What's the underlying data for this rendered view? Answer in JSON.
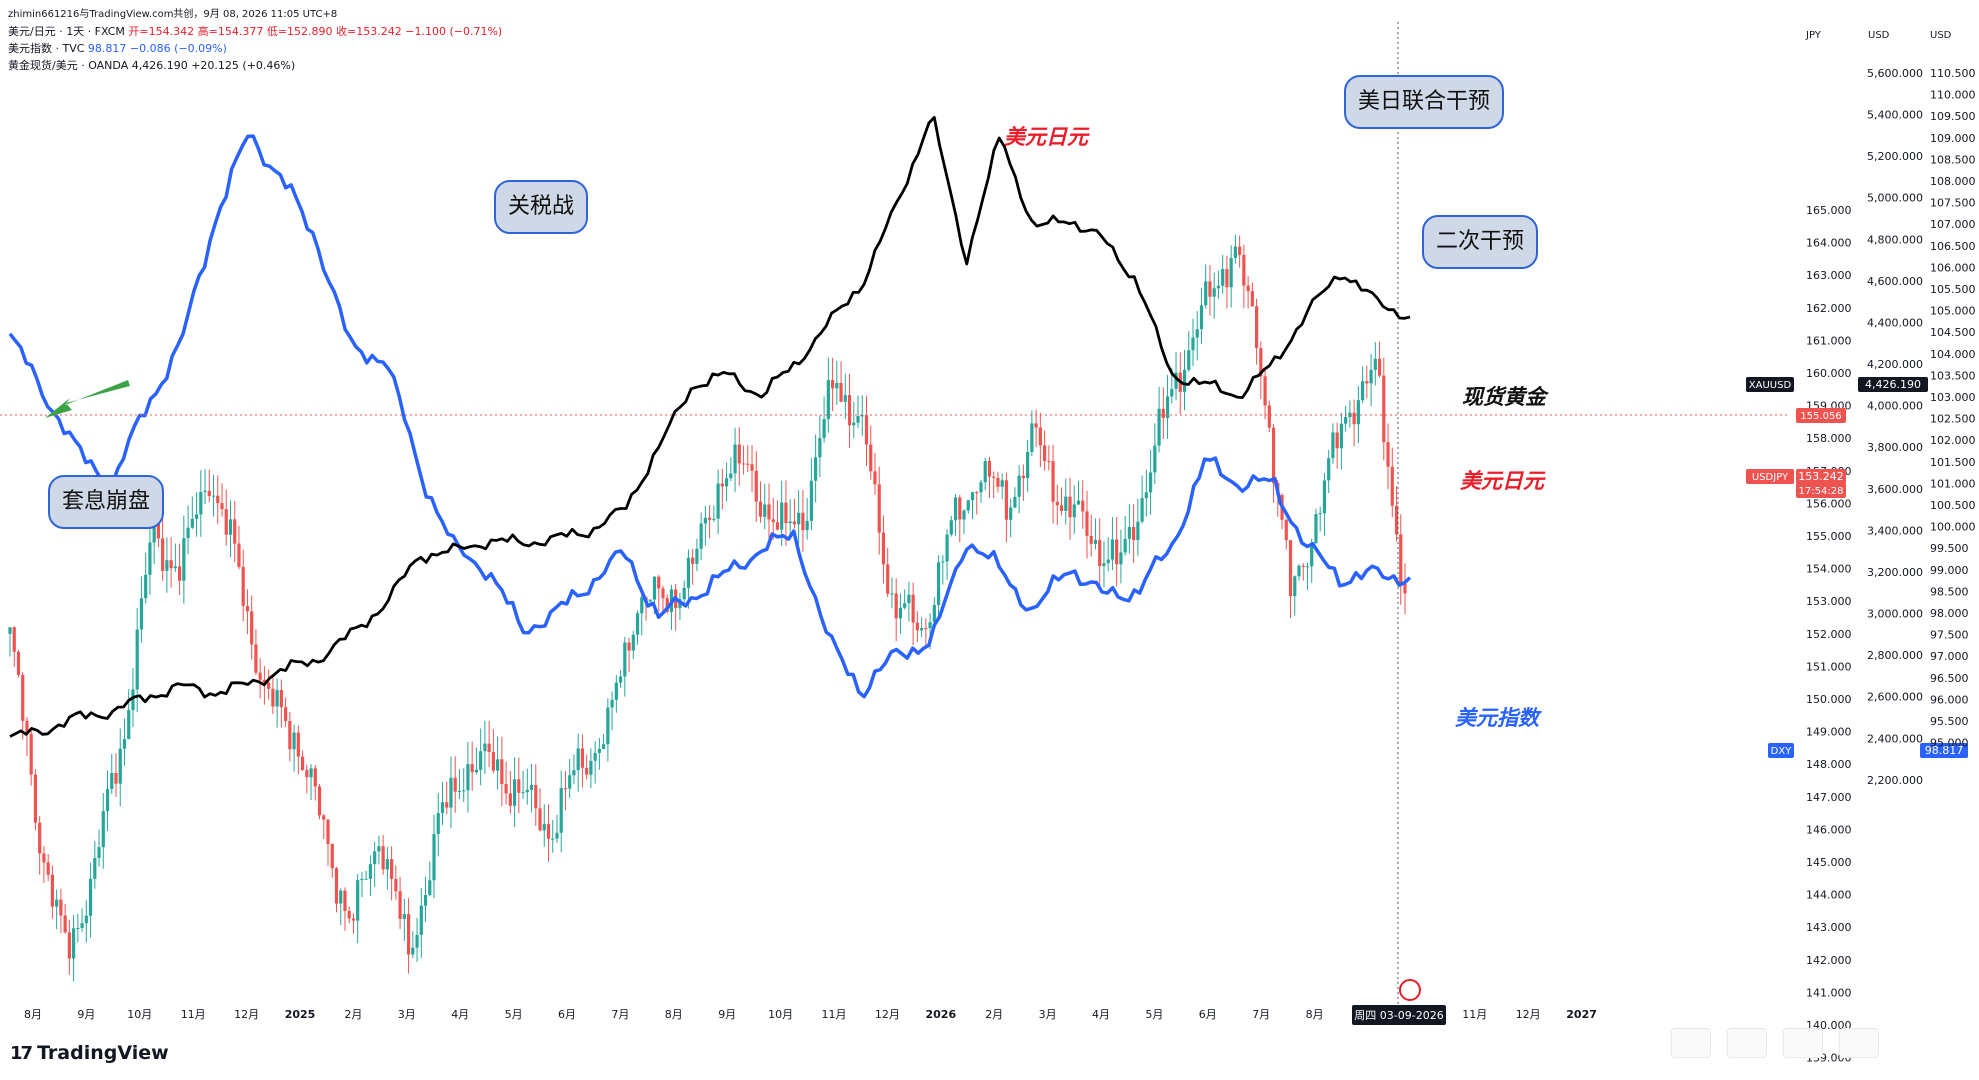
{
  "header": {
    "credit": "zhimin661216与TradingView.com共创，9月 08, 2026 11:05 UTC+8",
    "line1_prefix": "美元/日元 · 1天 · FXCM",
    "line1_ohlc": "开=154.342  高=154.377  低=152.890  收=153.242",
    "line1_change": "−1.100 (−0.71%)",
    "line2_prefix": "美元指数 · TVC",
    "line2_value": "98.817  −0.086 (−0.09%)",
    "line3_prefix": "黄金现货/美元 · OANDA",
    "line3_value": "4,426.190  +20.125 (+0.46%)"
  },
  "axis_headers": {
    "jpy": "JPY",
    "usd1": "USD",
    "usd2": "USD"
  },
  "annotations": {
    "carry_crash": "套息崩盘",
    "tariff_war": "关税战",
    "usdjpy_top": "美元日元",
    "joint_intervention": "美日联合干预",
    "second_intervention": "二次干预",
    "spot_gold": "现货黄金",
    "usdjpy_label": "美元日元",
    "dxy_label": "美元指数"
  },
  "tags": {
    "xauusd_name": "XAUUSD",
    "xauusd_value": "4,426.190",
    "usdjpy_name": "USDJPY",
    "usdjpy_value": "153.242",
    "usdjpy_countdown": "17:54:28",
    "red_line_value": "155.056",
    "dxy_name": "DXY",
    "dxy_value": "98.817"
  },
  "crosshair_date": "周四 03-09-2026",
  "brand": "TradingView",
  "colors": {
    "usdjpy_up": "#26a69a",
    "usdjpy_down": "#ef5350",
    "dxy": "#2962ff",
    "gold": "#000000",
    "annot_red": "#e91e2a",
    "annot_blue": "#2962ff"
  },
  "chart_data": {
    "type": "line",
    "x_ticks": [
      "8月",
      "9月",
      "10月",
      "11月",
      "12月",
      "2025",
      "2月",
      "3月",
      "4月",
      "5月",
      "6月",
      "7月",
      "8月",
      "9月",
      "10月",
      "11月",
      "12月",
      "2026",
      "2月",
      "3月",
      "4月",
      "5月",
      "6月",
      "7月",
      "8月",
      "9月",
      "10月",
      "11月",
      "12月",
      "2027"
    ],
    "axes": {
      "jpy": {
        "ticks": [
          165,
          164,
          163,
          162,
          161,
          160,
          159,
          158,
          157,
          156,
          155,
          154,
          153,
          152,
          151,
          150,
          149,
          148,
          147,
          146,
          145,
          144,
          143,
          142,
          141,
          140,
          139,
          138
        ]
      },
      "gold_usd": {
        "ticks": [
          "5,600.000",
          "5,400.000",
          "5,200.000",
          "5,000.000",
          "4,800.000",
          "4,600.000",
          "4,400.000",
          "4,200.000",
          "4,000.000",
          "3,800.000",
          "3,600.000",
          "3,400.000",
          "3,200.000",
          "3,000.000",
          "2,800.000",
          "2,600.000",
          "2,400.000",
          "2,200.000"
        ]
      },
      "dxy_usd": {
        "ticks": [
          "110.500",
          "110.000",
          "109.500",
          "109.000",
          "108.500",
          "108.000",
          "107.500",
          "107.000",
          "106.500",
          "106.000",
          "105.500",
          "105.000",
          "104.500",
          "104.000",
          "103.500",
          "103.000",
          "102.500",
          "102.000",
          "101.500",
          "101.000",
          "100.500",
          "100.000",
          "99.500",
          "99.000",
          "98.500",
          "98.000",
          "97.500",
          "97.000",
          "96.500",
          "96.000",
          "95.500",
          "95.000"
        ]
      }
    },
    "series": [
      {
        "name": "美元/日元",
        "axis": "jpy",
        "values": [
          152,
          146,
          142,
          145,
          149,
          155,
          154,
          157,
          154,
          150,
          149,
          146,
          143,
          146,
          142,
          146,
          148,
          148,
          147,
          146,
          148,
          149,
          153,
          153,
          154,
          157,
          157,
          155,
          156,
          160,
          158,
          153,
          152,
          155,
          157,
          156,
          158,
          156,
          155,
          154,
          157,
          160,
          162,
          164,
          160,
          153,
          156,
          159,
          160,
          153.24
        ]
      },
      {
        "name": "美元指数",
        "axis": "dxy",
        "values": [
          104.4,
          103.1,
          101.7,
          101.0,
          102.8,
          104.2,
          107.1,
          109.1,
          108.0,
          106.6,
          104.1,
          103.9,
          101.3,
          99.5,
          99.0,
          97.6,
          98.0,
          98.7,
          99.4,
          97.9,
          98.4,
          98.9,
          99.5,
          99.8,
          97.3,
          96.2,
          97.1,
          97.3,
          99.7,
          99.0,
          98.0,
          99.1,
          98.4,
          98.5,
          99.5,
          101.5,
          101.0,
          101.0,
          99.5,
          98.8,
          98.9,
          98.82
        ]
      },
      {
        "name": "黄金现货/美元",
        "axis": "gold",
        "values": [
          2400,
          2440,
          2500,
          2530,
          2600,
          2650,
          2620,
          2660,
          2730,
          2780,
          2900,
          3050,
          3280,
          3300,
          3350,
          3340,
          3360,
          3400,
          3500,
          3800,
          4100,
          4150,
          4050,
          4200,
          4400,
          4600,
          4980,
          5400,
          4700,
          5300,
          4850,
          4900,
          4800,
          4600,
          4150,
          4100,
          4050,
          4200,
          4450,
          4650,
          4500,
          4426.19
        ]
      }
    ]
  }
}
